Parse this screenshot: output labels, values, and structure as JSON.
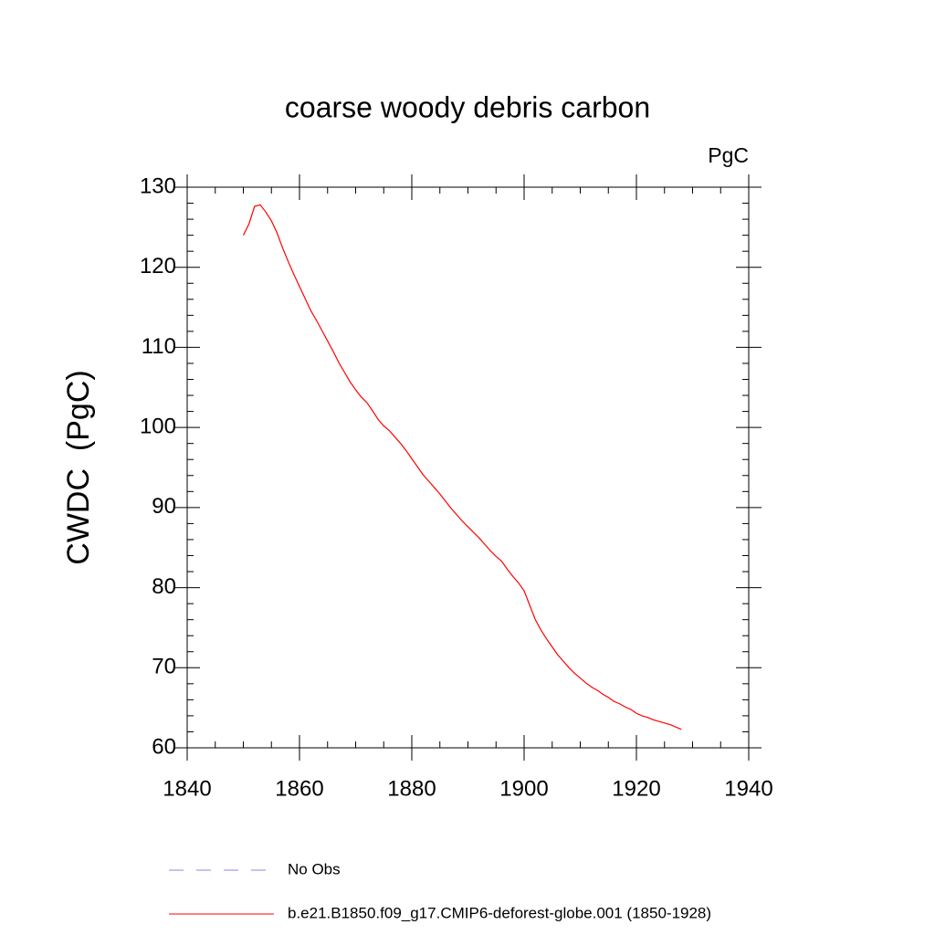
{
  "chart_data": {
    "type": "line",
    "title": "coarse woody debris carbon",
    "units": "PgC",
    "y_label": "CWDC  (PgC)",
    "x": [
      1850,
      1851,
      1852,
      1853,
      1854,
      1855,
      1856,
      1857,
      1858,
      1859,
      1860,
      1861,
      1862,
      1863,
      1864,
      1865,
      1866,
      1867,
      1868,
      1869,
      1870,
      1871,
      1872,
      1873,
      1874,
      1875,
      1876,
      1877,
      1878,
      1879,
      1880,
      1881,
      1882,
      1883,
      1884,
      1885,
      1886,
      1887,
      1888,
      1889,
      1890,
      1891,
      1892,
      1893,
      1894,
      1895,
      1896,
      1897,
      1898,
      1899,
      1900,
      1901,
      1902,
      1903,
      1904,
      1905,
      1906,
      1907,
      1908,
      1909,
      1910,
      1911,
      1912,
      1913,
      1914,
      1915,
      1916,
      1917,
      1918,
      1919,
      1920,
      1921,
      1922,
      1923,
      1924,
      1925,
      1926,
      1927,
      1928
    ],
    "series": [
      {
        "name": "b.e21.B1850.f09_g17.CMIP6-deforest-globe.001 (1850-1928)",
        "color": "#ff0000",
        "values": [
          124.0,
          125.4,
          127.6,
          127.8,
          126.9,
          125.8,
          124.3,
          122.4,
          120.7,
          119.1,
          117.6,
          116.1,
          114.6,
          113.4,
          112.1,
          110.8,
          109.5,
          108.1,
          106.9,
          105.7,
          104.7,
          103.8,
          103.1,
          102.1,
          101.0,
          100.2,
          99.6,
          98.8,
          98.0,
          97.1,
          96.1,
          95.1,
          94.1,
          93.3,
          92.5,
          91.7,
          90.8,
          89.9,
          89.1,
          88.3,
          87.6,
          86.9,
          86.2,
          85.4,
          84.6,
          83.9,
          83.3,
          82.3,
          81.4,
          80.6,
          79.6,
          77.8,
          76.0,
          74.7,
          73.6,
          72.6,
          71.6,
          70.8,
          70.0,
          69.3,
          68.7,
          68.1,
          67.6,
          67.2,
          66.7,
          66.3,
          65.8,
          65.5,
          65.1,
          64.8,
          64.3,
          64.0,
          63.8,
          63.5,
          63.3,
          63.1,
          62.9,
          62.6,
          62.3
        ]
      }
    ],
    "reference": {
      "name": "No Obs",
      "color": "#8888dd",
      "dash": true
    },
    "xlim": [
      1840,
      1940
    ],
    "xticks": [
      1840,
      1860,
      1880,
      1900,
      1920,
      1940
    ],
    "ylim": [
      60,
      130
    ],
    "yticks": [
      60,
      70,
      80,
      90,
      100,
      110,
      120,
      130
    ],
    "grid": false
  }
}
